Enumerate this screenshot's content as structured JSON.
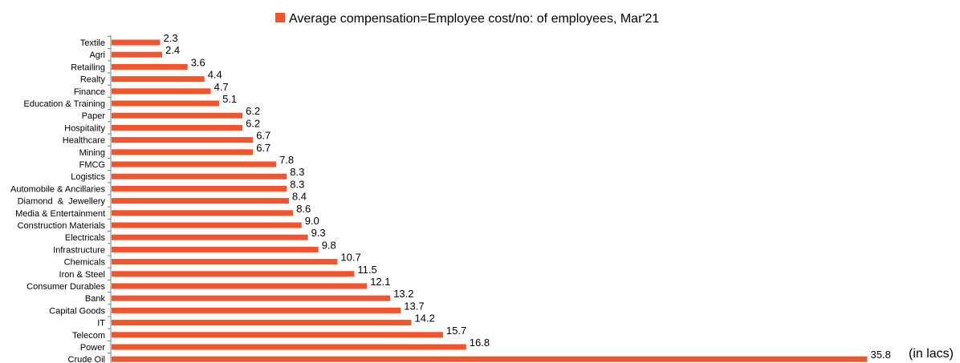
{
  "chart_data": {
    "type": "bar",
    "orientation": "horizontal",
    "legend_position": "top-center",
    "grid": false,
    "bar_color": "#f4532b",
    "unit_note": "(in lacs)",
    "xlim": [
      0,
      40
    ],
    "categories": [
      "Textile",
      "Agri",
      "Retailing",
      "Realty",
      "Finance",
      "Education & Training",
      "Paper",
      "Hospitality",
      "Healthcare",
      "Mining",
      "FMCG",
      "Logistics",
      "Automobile & Ancillaries",
      "Diamond  &  Jewellery",
      "Media & Entertainment",
      "Construction Materials",
      "Electricals",
      "Infrastructure",
      "Chemicals",
      "Iron & Steel",
      "Consumer Durables",
      "Bank",
      "Capital Goods",
      "IT",
      "Telecom",
      "Power",
      "Crude Oil"
    ],
    "series": [
      {
        "name": "Average compensation=Employee cost/no: of employees, Mar'21",
        "values": [
          2.3,
          2.4,
          3.6,
          4.4,
          4.7,
          5.1,
          6.2,
          6.2,
          6.7,
          6.7,
          7.8,
          8.3,
          8.3,
          8.4,
          8.6,
          9.0,
          9.3,
          9.8,
          10.7,
          11.5,
          12.1,
          13.2,
          13.7,
          14.2,
          15.7,
          16.8,
          35.8
        ],
        "labels": [
          "2.3",
          "2.4",
          "3.6",
          "4.4",
          "4.7",
          "5.1",
          "6.2",
          "6.2",
          "6.7",
          "6.7",
          "7.8",
          "8.3",
          "8.3",
          "8.4",
          "8.6",
          "9.0",
          "9.3",
          "9.8",
          "10.7",
          "11.5",
          "12.1",
          "13.2",
          "13.7",
          "14.2",
          "15.7",
          "16.8",
          "35.8"
        ]
      }
    ]
  }
}
